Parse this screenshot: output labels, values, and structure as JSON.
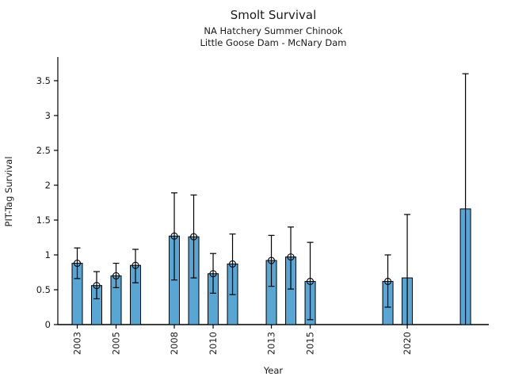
{
  "chart_data": {
    "type": "bar",
    "title": "Smolt Survival",
    "subtitle1": "NA Hatchery Summer Chinook",
    "subtitle2": "Little Goose Dam - McNary Dam",
    "xlabel": "Year",
    "ylabel": "PIT-Tag Survival",
    "x_tick_years": [
      2003,
      2005,
      2008,
      2010,
      2013,
      2015,
      2020
    ],
    "x_tick_labels": [
      "2003",
      "2005",
      "2008",
      "2010",
      "2013",
      "2015",
      "2020"
    ],
    "y_tick_values": [
      0,
      0.5,
      1,
      1.5,
      2,
      2.5,
      3,
      3.5
    ],
    "y_tick_labels": [
      "0",
      "0.5",
      "1",
      "1.5",
      "2",
      "2.5",
      "3",
      "3.5"
    ],
    "xlim": [
      2002,
      2024.2
    ],
    "ylim": [
      0,
      3.84
    ],
    "grid": false,
    "legend": "none",
    "bar_color": "#58a6d4",
    "edge_color": "#000000",
    "error_color": "#000000",
    "text_color": "#1a1a1a",
    "points": [
      {
        "year": 2003,
        "value": 0.88,
        "lo": 0.66,
        "hi": 1.1,
        "marker": true,
        "lo_cap": true
      },
      {
        "year": 2004,
        "value": 0.56,
        "lo": 0.37,
        "hi": 0.76,
        "marker": true,
        "lo_cap": true
      },
      {
        "year": 2005,
        "value": 0.7,
        "lo": 0.53,
        "hi": 0.88,
        "marker": true,
        "lo_cap": true
      },
      {
        "year": 2006,
        "value": 0.85,
        "lo": 0.6,
        "hi": 1.08,
        "marker": true,
        "lo_cap": true
      },
      {
        "year": 2008,
        "value": 1.27,
        "lo": 0.64,
        "hi": 1.89,
        "marker": true,
        "lo_cap": true
      },
      {
        "year": 2009,
        "value": 1.26,
        "lo": 0.67,
        "hi": 1.86,
        "marker": true,
        "lo_cap": true
      },
      {
        "year": 2010,
        "value": 0.73,
        "lo": 0.45,
        "hi": 1.02,
        "marker": true,
        "lo_cap": true
      },
      {
        "year": 2011,
        "value": 0.87,
        "lo": 0.43,
        "hi": 1.3,
        "marker": true,
        "lo_cap": true
      },
      {
        "year": 2013,
        "value": 0.92,
        "lo": 0.55,
        "hi": 1.28,
        "marker": true,
        "lo_cap": true
      },
      {
        "year": 2014,
        "value": 0.97,
        "lo": 0.51,
        "hi": 1.4,
        "marker": true,
        "lo_cap": true
      },
      {
        "year": 2015,
        "value": 0.62,
        "lo": 0.07,
        "hi": 1.18,
        "marker": true,
        "lo_cap": true
      },
      {
        "year": 2019,
        "value": 0.62,
        "lo": 0.25,
        "hi": 1.0,
        "marker": true,
        "lo_cap": true
      },
      {
        "year": 2020,
        "value": 0.67,
        "lo": 0.0,
        "hi": 1.58,
        "marker": false,
        "lo_cap": false
      },
      {
        "year": 2023,
        "value": 1.66,
        "lo": 0.0,
        "hi": 3.6,
        "marker": false,
        "lo_cap": false
      }
    ]
  }
}
